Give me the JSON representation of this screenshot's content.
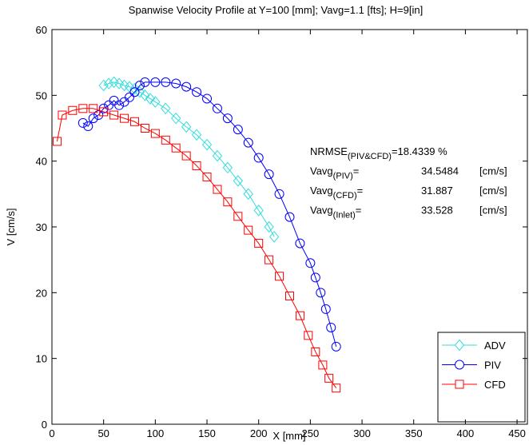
{
  "chart_data": {
    "type": "line",
    "title": "Spanwise Velocity Profile at Y=100 [mm]; Vavg=1.1 [fts]; H=9[in]",
    "x_label": "X [mm]",
    "y_label": "V [cm/s]",
    "xlim": [
      0,
      460
    ],
    "ylim": [
      0,
      60
    ],
    "xticks": [
      0,
      50,
      100,
      150,
      200,
      250,
      300,
      350,
      400,
      450
    ],
    "yticks": [
      0,
      10,
      20,
      30,
      40,
      50,
      60
    ],
    "legend": "lower right",
    "series": [
      {
        "name": "ADV",
        "color": "#33dddd",
        "marker": "diamond",
        "x": [
          50,
          55,
          60,
          65,
          70,
          75,
          80,
          85,
          90,
          95,
          100,
          110,
          120,
          130,
          140,
          150,
          160,
          170,
          180,
          190,
          200,
          210,
          215
        ],
        "values": [
          51.5,
          51.8,
          52,
          51.8,
          51.5,
          51.3,
          51,
          50.5,
          50,
          49.5,
          49,
          48,
          46.5,
          45.2,
          44,
          42.5,
          40.8,
          39,
          37,
          35,
          32.5,
          30,
          28.5
        ]
      },
      {
        "name": "PIV",
        "color": "#0000ff",
        "marker": "circle",
        "x": [
          30,
          35,
          40,
          45,
          50,
          55,
          60,
          65,
          70,
          75,
          80,
          85,
          90,
          100,
          110,
          120,
          130,
          140,
          150,
          160,
          170,
          180,
          190,
          200,
          210,
          220,
          230,
          240,
          250,
          255,
          260,
          265,
          270,
          275
        ],
        "values": [
          45.8,
          45.3,
          46.5,
          47,
          48,
          48.5,
          49.2,
          48.5,
          49,
          49.7,
          50.5,
          51.5,
          52,
          52,
          52,
          51.8,
          51.3,
          50.5,
          49.5,
          48,
          46.5,
          44.8,
          42.8,
          40.5,
          38,
          35,
          31.5,
          27.5,
          24.5,
          22.3,
          20,
          17.5,
          14.7,
          11.8
        ]
      },
      {
        "name": "CFD",
        "color": "#ff0000",
        "marker": "square",
        "x": [
          5,
          10,
          20,
          30,
          40,
          50,
          60,
          70,
          80,
          90,
          100,
          110,
          120,
          130,
          140,
          150,
          160,
          170,
          180,
          190,
          200,
          210,
          220,
          230,
          240,
          248,
          255,
          262,
          268,
          275
        ],
        "values": [
          43,
          47,
          47.7,
          48,
          48,
          47.5,
          47,
          46.5,
          46,
          45,
          44.2,
          43.2,
          42,
          40.8,
          39.3,
          37.6,
          35.7,
          33.8,
          31.6,
          29.5,
          27.5,
          25,
          22.5,
          19.5,
          16.5,
          13.5,
          11,
          9,
          7,
          5.5
        ]
      }
    ],
    "annotations": [
      {
        "text": "NRMSE",
        "sub": "(PIV&CFD)",
        "value": "=18.4339 %"
      },
      {
        "text": "Vavg",
        "sub": "(PIV)",
        "value": "=",
        "number": "34.5484",
        "unit": "[cm/s]"
      },
      {
        "text": "Vavg",
        "sub": "(CFD)",
        "value": "=",
        "number": "31.887",
        "unit": "[cm/s]"
      },
      {
        "text": "Vavg",
        "sub": "(Inlet)",
        "value": "=",
        "number": "33.528",
        "unit": "[cm/s]"
      }
    ]
  }
}
